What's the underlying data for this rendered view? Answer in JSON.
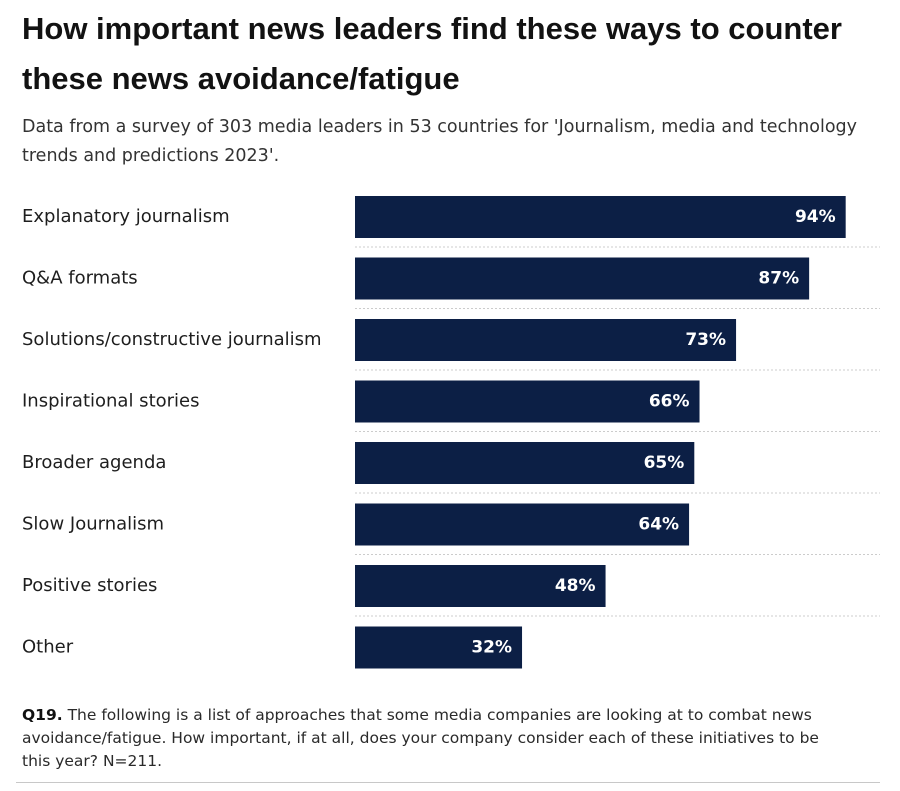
{
  "title": "How important news leaders find these ways to counter these news avoidance/fatigue",
  "subtitle": "Data from a survey of 303 media leaders in 53 countries for 'Journalism, media and technology trends and predictions 2023'.",
  "footnote": {
    "question_id": "Q19.",
    "text": " The following is a list of approaches that some media companies are looking at to combat news avoidance/fatigue. How important, if at all, does your company consider each of these initiatives to be this year? N=211."
  },
  "colors": {
    "bar": "#0c1f45",
    "value_text": "#ffffff",
    "divider": "#cccccc"
  },
  "chart_data": {
    "type": "bar",
    "orientation": "horizontal",
    "categories": [
      "Explanatory journalism",
      "Q&A formats",
      "Solutions/constructive journalism",
      "Inspirational stories",
      "Broader agenda",
      "Slow Journalism",
      "Positive stories",
      "Other"
    ],
    "values": [
      94,
      87,
      73,
      66,
      65,
      64,
      48,
      32
    ],
    "value_labels": [
      "94%",
      "87%",
      "73%",
      "66%",
      "65%",
      "64%",
      "48%",
      "32%"
    ],
    "unit": "%",
    "xlim": [
      0,
      100
    ],
    "grid": false,
    "legend": "none"
  }
}
